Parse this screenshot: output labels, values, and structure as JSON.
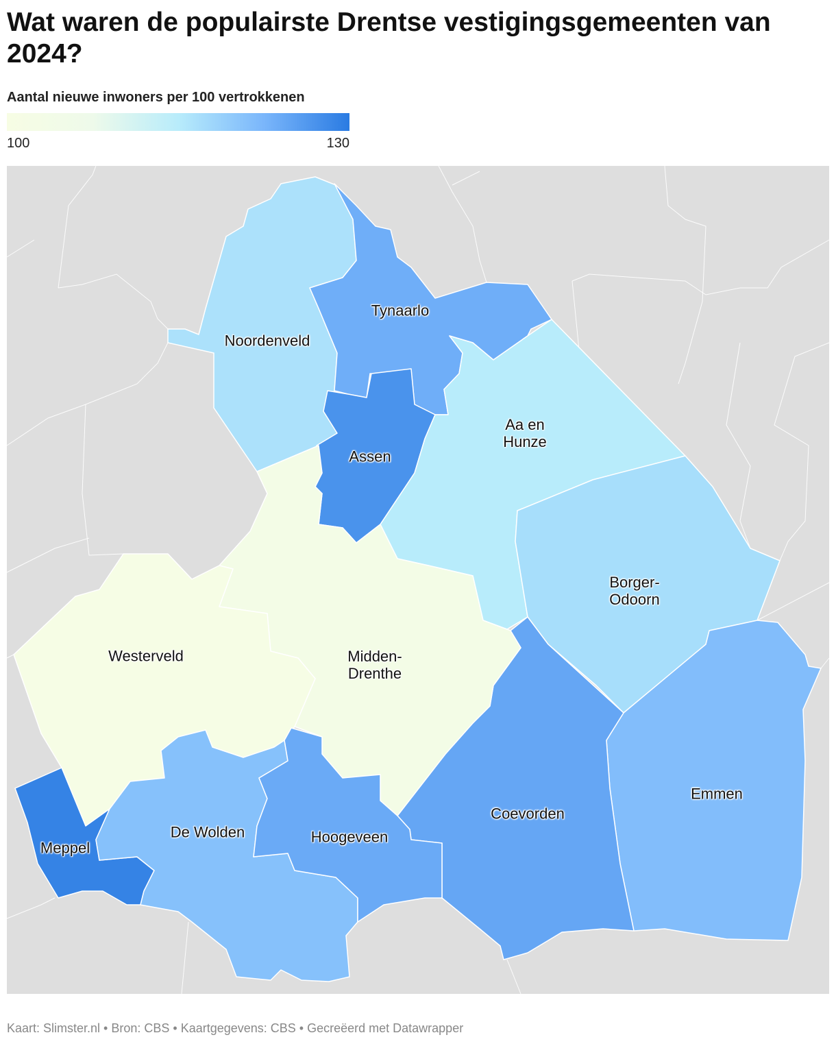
{
  "chart_data": {
    "type": "choropleth",
    "title": "Wat waren de populairste Drentse vestigingsgemeenten van 2024?",
    "subtitle": "Aantal nieuwe inwoners per 100 vertrokkenen",
    "vlim": [
      100,
      130
    ],
    "ticks": [
      100,
      130
    ],
    "colorscale": [
      "#f7fde4",
      "#eefaea",
      "#b8ecfb",
      "#7ab6fb",
      "#2a7be2"
    ],
    "regions": [
      {
        "name": "Noordenveld",
        "value": 116.5
      },
      {
        "name": "Tynaarlo",
        "value": 123.5
      },
      {
        "name": "Assen",
        "value": 127
      },
      {
        "name": "Aa en Hunze",
        "value": 115
      },
      {
        "name": "Borger-Odoorn",
        "value": 117
      },
      {
        "name": "Emmen",
        "value": 121.5
      },
      {
        "name": "Coevorden",
        "value": 124.5
      },
      {
        "name": "Midden-Drenthe",
        "value": 103
      },
      {
        "name": "Westerveld",
        "value": 101
      },
      {
        "name": "Meppel",
        "value": 129
      },
      {
        "name": "De Wolden",
        "value": 121
      },
      {
        "name": "Hoogeveen",
        "value": 124
      }
    ],
    "footer": "Kaart: Slimster.nl • Bron: CBS • Kaartgegevens: CBS • Gecreëerd met Datawrapper"
  }
}
